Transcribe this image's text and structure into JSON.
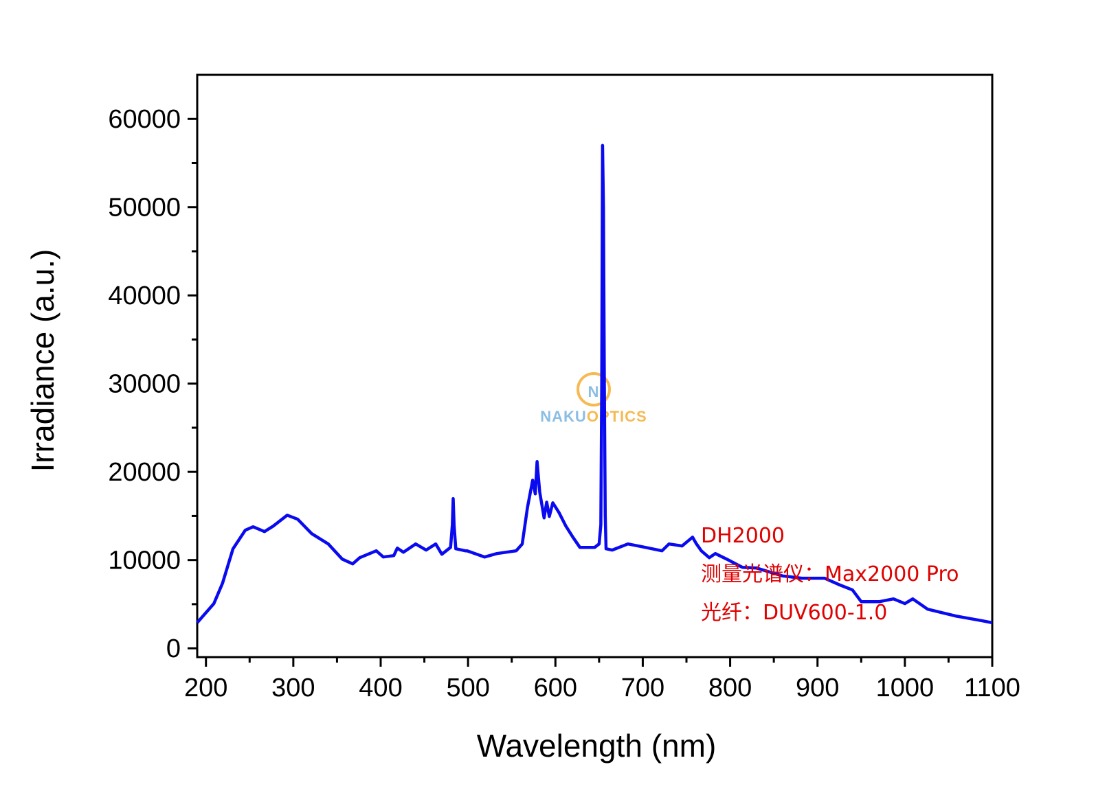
{
  "chart_data": {
    "type": "line",
    "title": "",
    "xlabel": "Wavelength (nm)",
    "ylabel": "Irradiance (a.u.)",
    "xlim": [
      190,
      1100
    ],
    "ylim": [
      -1000,
      65000
    ],
    "x_ticks": [
      200,
      300,
      400,
      500,
      600,
      700,
      800,
      900,
      1000,
      1100
    ],
    "y_ticks": [
      0,
      10000,
      20000,
      30000,
      40000,
      50000,
      60000
    ],
    "grid": false,
    "line_color": "#0a0af0",
    "series": [
      {
        "x": [
          190,
          209,
          219,
          231,
          245,
          254,
          267,
          277,
          293,
          305,
          321,
          340,
          356,
          368,
          376,
          395,
          403,
          415,
          419,
          426,
          440,
          452,
          463,
          470,
          480,
          482,
          483,
          484,
          486,
          497,
          499,
          519,
          533,
          555,
          562,
          568,
          574,
          577,
          579,
          582,
          587,
          590,
          593,
          597,
          604,
          612,
          620,
          628,
          645,
          650,
          652,
          653,
          654,
          655,
          656,
          657,
          658,
          665,
          683,
          700,
          722,
          730,
          745,
          757,
          761,
          767,
          776,
          783,
          796,
          814,
          830,
          860,
          882,
          908,
          924,
          940,
          950,
          971,
          987,
          1000,
          1009,
          1026,
          1058,
          1089,
          1100
        ],
        "y": [
          2900,
          5060,
          7390,
          11280,
          13380,
          13770,
          13230,
          13850,
          15090,
          14630,
          12990,
          11830,
          10110,
          9570,
          10270,
          11050,
          10350,
          10500,
          11360,
          10890,
          11830,
          11130,
          11830,
          10660,
          11440,
          14000,
          16960,
          14000,
          11280,
          11050,
          11050,
          10350,
          10740,
          11050,
          11830,
          15950,
          19060,
          17500,
          21160,
          17740,
          14780,
          16570,
          14940,
          16490,
          15400,
          13850,
          12600,
          11440,
          11440,
          11830,
          14000,
          30000,
          57000,
          50000,
          30000,
          15000,
          11280,
          11130,
          11830,
          11500,
          11050,
          11830,
          11600,
          12600,
          11900,
          11050,
          10270,
          10740,
          10110,
          9180,
          9100,
          8200,
          7940,
          7940,
          7240,
          6610,
          5290,
          5290,
          5600,
          5060,
          5600,
          4430,
          3660,
          3110,
          2900
        ]
      }
    ],
    "annotations": [
      "DH2000",
      "测量光谱仪：Max2000 Pro",
      "光纤：DUV600-1.0"
    ],
    "annotation_color": "#e00000",
    "watermark": {
      "logo_letter": "N",
      "text_part1": "NAKU",
      "text_part2": "OPTICS",
      "color1": "#7fb8e0",
      "color2": "#f5b342"
    }
  }
}
